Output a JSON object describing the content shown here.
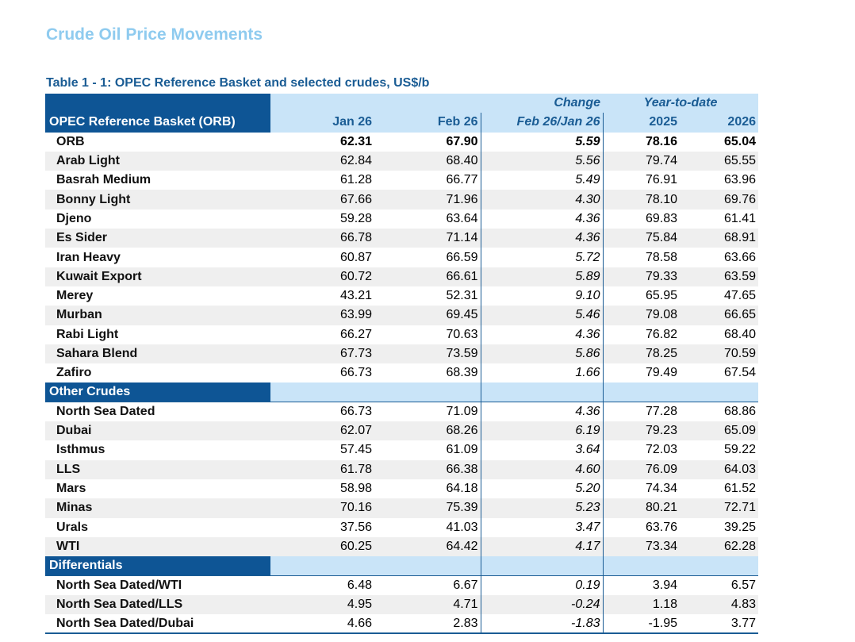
{
  "title": "Crude Oil Price Movements",
  "table": {
    "caption": "Table 1 - 1: OPEC Reference Basket and selected crudes, US$/b",
    "header": {
      "group_change": "Change",
      "group_ytd": "Year-to-date",
      "row_header": "OPEC Reference Basket (ORB)",
      "columns": [
        "Jan 26",
        "Feb 26",
        "Feb 26/Jan 26",
        "2025",
        "2026"
      ]
    },
    "sections": [
      {
        "rows": [
          {
            "label": "ORB",
            "values": [
              "62.31",
              "67.90",
              "5.59",
              "78.16",
              "65.04"
            ]
          },
          {
            "label": "Arab Light",
            "values": [
              "62.84",
              "68.40",
              "5.56",
              "79.74",
              "65.55"
            ]
          },
          {
            "label": "Basrah Medium",
            "values": [
              "61.28",
              "66.77",
              "5.49",
              "76.91",
              "63.96"
            ]
          },
          {
            "label": "Bonny Light",
            "values": [
              "67.66",
              "71.96",
              "4.30",
              "78.10",
              "69.76"
            ]
          },
          {
            "label": "Djeno",
            "values": [
              "59.28",
              "63.64",
              "4.36",
              "69.83",
              "61.41"
            ]
          },
          {
            "label": "Es Sider",
            "values": [
              "66.78",
              "71.14",
              "4.36",
              "75.84",
              "68.91"
            ]
          },
          {
            "label": "Iran Heavy",
            "values": [
              "60.87",
              "66.59",
              "5.72",
              "78.58",
              "63.66"
            ]
          },
          {
            "label": "Kuwait Export",
            "values": [
              "60.72",
              "66.61",
              "5.89",
              "79.33",
              "63.59"
            ]
          },
          {
            "label": "Merey",
            "values": [
              "43.21",
              "52.31",
              "9.10",
              "65.95",
              "47.65"
            ]
          },
          {
            "label": "Murban",
            "values": [
              "63.99",
              "69.45",
              "5.46",
              "79.08",
              "66.65"
            ]
          },
          {
            "label": "Rabi Light",
            "values": [
              "66.27",
              "70.63",
              "4.36",
              "76.82",
              "68.40"
            ]
          },
          {
            "label": "Sahara Blend",
            "values": [
              "67.73",
              "73.59",
              "5.86",
              "78.25",
              "70.59"
            ]
          },
          {
            "label": "Zafiro",
            "values": [
              "66.73",
              "68.39",
              "1.66",
              "79.49",
              "67.54"
            ]
          }
        ]
      },
      {
        "name": "Other Crudes",
        "rows": [
          {
            "label": "North Sea Dated",
            "values": [
              "66.73",
              "71.09",
              "4.36",
              "77.28",
              "68.86"
            ]
          },
          {
            "label": "Dubai",
            "values": [
              "62.07",
              "68.26",
              "6.19",
              "79.23",
              "65.09"
            ]
          },
          {
            "label": "Isthmus",
            "values": [
              "57.45",
              "61.09",
              "3.64",
              "72.03",
              "59.22"
            ]
          },
          {
            "label": "LLS",
            "values": [
              "61.78",
              "66.38",
              "4.60",
              "76.09",
              "64.03"
            ]
          },
          {
            "label": "Mars",
            "values": [
              "58.98",
              "64.18",
              "5.20",
              "74.34",
              "61.52"
            ]
          },
          {
            "label": "Minas",
            "values": [
              "70.16",
              "75.39",
              "5.23",
              "80.21",
              "72.71"
            ]
          },
          {
            "label": "Urals",
            "values": [
              "37.56",
              "41.03",
              "3.47",
              "63.76",
              "39.25"
            ]
          },
          {
            "label": "WTI",
            "values": [
              "60.25",
              "64.42",
              "4.17",
              "73.34",
              "62.28"
            ]
          }
        ]
      },
      {
        "name": "Differentials",
        "rows": [
          {
            "label": "North Sea Dated/WTI",
            "values": [
              "6.48",
              "6.67",
              "0.19",
              "3.94",
              "6.57"
            ]
          },
          {
            "label": "North Sea Dated/LLS",
            "values": [
              "4.95",
              "4.71",
              "-0.24",
              "1.18",
              "4.83"
            ]
          },
          {
            "label": "North Sea Dated/Dubai",
            "values": [
              "4.66",
              "2.83",
              "-1.83",
              "-1.95",
              "3.77"
            ]
          }
        ]
      }
    ]
  }
}
